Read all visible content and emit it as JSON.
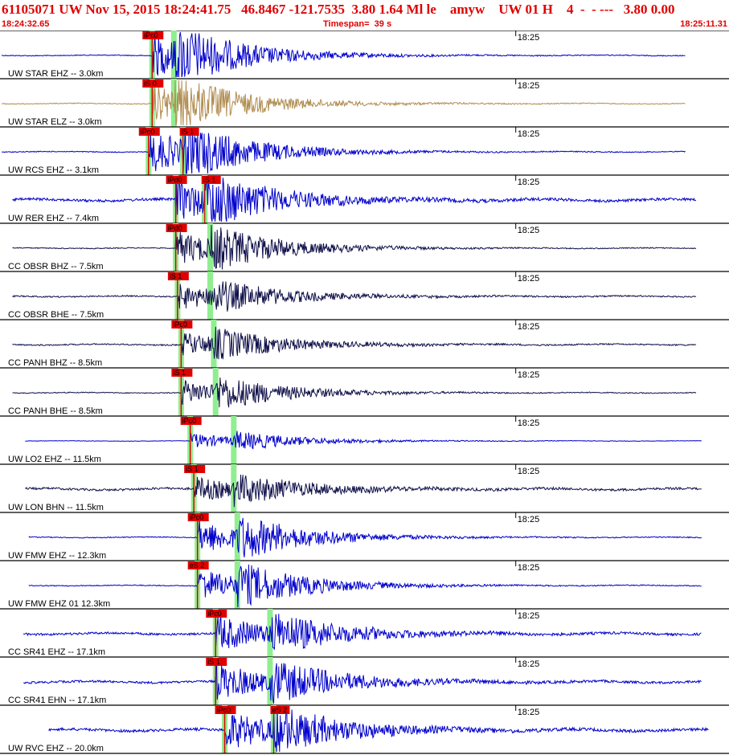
{
  "header": {
    "title": "61105071 UW Nov 15, 2015 18:24:41.75   46.8467 -121.7535  3.80 1.64 Ml le    amyw    UW 01 H    4  -  - ---   3.80 0.00",
    "start_time": "18:24:32.65",
    "timespan": "Timespan=  39 s",
    "end_time": "18:25:11.31"
  },
  "colors": {
    "accent": "#e00000",
    "trace_blue": "#0000cc",
    "trace_tan": "#b08c50",
    "trace_navy": "#10104a",
    "pick_green": "#90ee90",
    "pick_red": "#e00000"
  },
  "tick_label": "18:25",
  "channels": [
    {
      "label": "UW STAR EHZ -- 3.0km",
      "pick": "iPc0",
      "color": "blue",
      "p": 8.3,
      "s": 9.5,
      "amp": 1.0,
      "noise": 0.02,
      "start": 0.0,
      "end": 37.7,
      "extra": []
    },
    {
      "label": "UW STAR ELZ -- 3.0km",
      "pick": "iS 0",
      "color": "tan",
      "p": 8.3,
      "s": 9.5,
      "amp": 0.9,
      "noise": 0.02,
      "start": 0.0,
      "end": 37.7,
      "extra": []
    },
    {
      "label": "UW RCS EHZ -- 3.1km",
      "pick": "iPc0",
      "color": "blue",
      "p": 8.1,
      "s": 10.0,
      "amp": 1.0,
      "noise": 0.02,
      "start": 0.0,
      "end": 37.7,
      "extra": [
        "iS 1"
      ]
    },
    {
      "label": "UW RER EHZ -- 7.4km",
      "pick": "iPd0",
      "color": "blue",
      "p": 9.6,
      "s": 11.2,
      "amp": 0.95,
      "noise": 0.06,
      "start": 0.6,
      "end": 38.3,
      "extra": [
        "iS 1"
      ]
    },
    {
      "label": "CC OBSR BHZ -- 7.5km",
      "pick": "iPd0",
      "color": "navy",
      "p": 9.6,
      "s": 11.5,
      "amp": 0.8,
      "noise": 0.02,
      "start": 0.6,
      "end": 38.3,
      "extra": []
    },
    {
      "label": "CC OBSR BHE -- 7.5km",
      "pick": "iS 1",
      "color": "navy",
      "p": 9.7,
      "s": 11.5,
      "amp": 0.6,
      "noise": 0.03,
      "start": 0.6,
      "end": 38.3,
      "extra": []
    },
    {
      "label": "CC PANH BHZ -- 8.5km",
      "pick": "iPc0",
      "color": "navy",
      "p": 9.9,
      "s": 11.7,
      "amp": 0.55,
      "noise": 0.03,
      "start": 0.6,
      "end": 38.3,
      "extra": []
    },
    {
      "label": "CC PANH BHE -- 8.5km",
      "pick": "iS 1",
      "color": "navy",
      "p": 9.9,
      "s": 11.8,
      "amp": 0.6,
      "noise": 0.02,
      "start": 0.6,
      "end": 38.3,
      "extra": []
    },
    {
      "label": "UW LO2 EHZ -- 11.5km",
      "pick": "iPc0",
      "color": "blue",
      "p": 10.4,
      "s": 12.8,
      "amp": 0.35,
      "noise": 0.01,
      "start": 1.3,
      "end": 38.6,
      "extra": []
    },
    {
      "label": "UW LON BHN -- 11.5km",
      "pick": "iS 1",
      "color": "navy",
      "p": 10.6,
      "s": 12.8,
      "amp": 0.55,
      "noise": 0.05,
      "start": 1.3,
      "end": 38.6,
      "extra": []
    },
    {
      "label": "UW FMW EHZ -- 12.3km",
      "pick": "iPc0",
      "color": "blue",
      "p": 10.8,
      "s": 13.0,
      "amp": 0.8,
      "noise": 0.02,
      "start": 1.5,
      "end": 38.6,
      "extra": []
    },
    {
      "label": "UW FMW EHZ 01 12.3km",
      "pick": "eS 2",
      "color": "blue",
      "p": 10.8,
      "s": 13.0,
      "amp": 0.8,
      "noise": 0.02,
      "start": 1.5,
      "end": 38.6,
      "extra": []
    },
    {
      "label": "CC SR41 EHZ -- 17.1km",
      "pick": "iPc0",
      "color": "blue",
      "p": 11.8,
      "s": 14.8,
      "amp": 0.85,
      "noise": 0.05,
      "start": 1.2,
      "end": 38.6,
      "extra": []
    },
    {
      "label": "CC SR41 EHN -- 17.1km",
      "pick": "iS 1",
      "color": "blue",
      "p": 11.8,
      "s": 14.8,
      "amp": 0.85,
      "noise": 0.05,
      "start": 1.2,
      "end": 38.6,
      "extra": []
    },
    {
      "label": "UW RVC EHZ -- 20.0km",
      "pick": "iPc0",
      "color": "blue",
      "p": 12.3,
      "s": 15.0,
      "amp": 0.9,
      "noise": 0.06,
      "start": 2.6,
      "end": 39.0,
      "extra": [
        "eS 2"
      ]
    }
  ]
}
